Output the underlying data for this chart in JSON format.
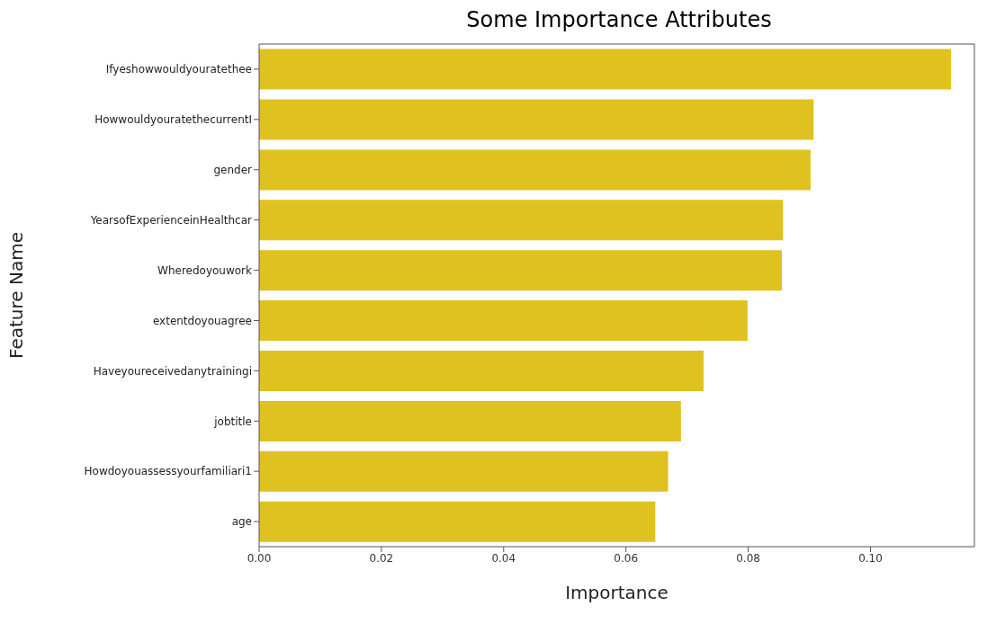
{
  "chart_data": {
    "type": "bar",
    "orientation": "horizontal",
    "title": "Some Importance Attributes",
    "xlabel": "Importance",
    "ylabel": "Feature Name",
    "categories": [
      "Ifyeshowwouldyouratethee",
      "HowwouldyouratethecurrentI",
      "gender",
      "YearsofExperienceinHealthcar",
      "Wheredoyouwork",
      "extentdoyouagree",
      "Haveyoureceivedanytrainingi",
      "jobtitle",
      "Howdoyouassessyourfamiliari1",
      "age"
    ],
    "values": [
      0.1132,
      0.0907,
      0.0902,
      0.0857,
      0.0855,
      0.0799,
      0.0727,
      0.069,
      0.0669,
      0.0648
    ],
    "color": "#dfc220",
    "xlim": [
      0,
      0.117
    ],
    "xticks": [
      {
        "value": 0,
        "label": "0.00"
      },
      {
        "value": 0.02,
        "label": "0.02"
      },
      {
        "value": 0.04,
        "label": "0.04"
      },
      {
        "value": 0.06,
        "label": "0.06"
      },
      {
        "value": 0.08,
        "label": "0.08"
      },
      {
        "value": 0.1,
        "label": "0.10"
      }
    ],
    "grid": false
  }
}
